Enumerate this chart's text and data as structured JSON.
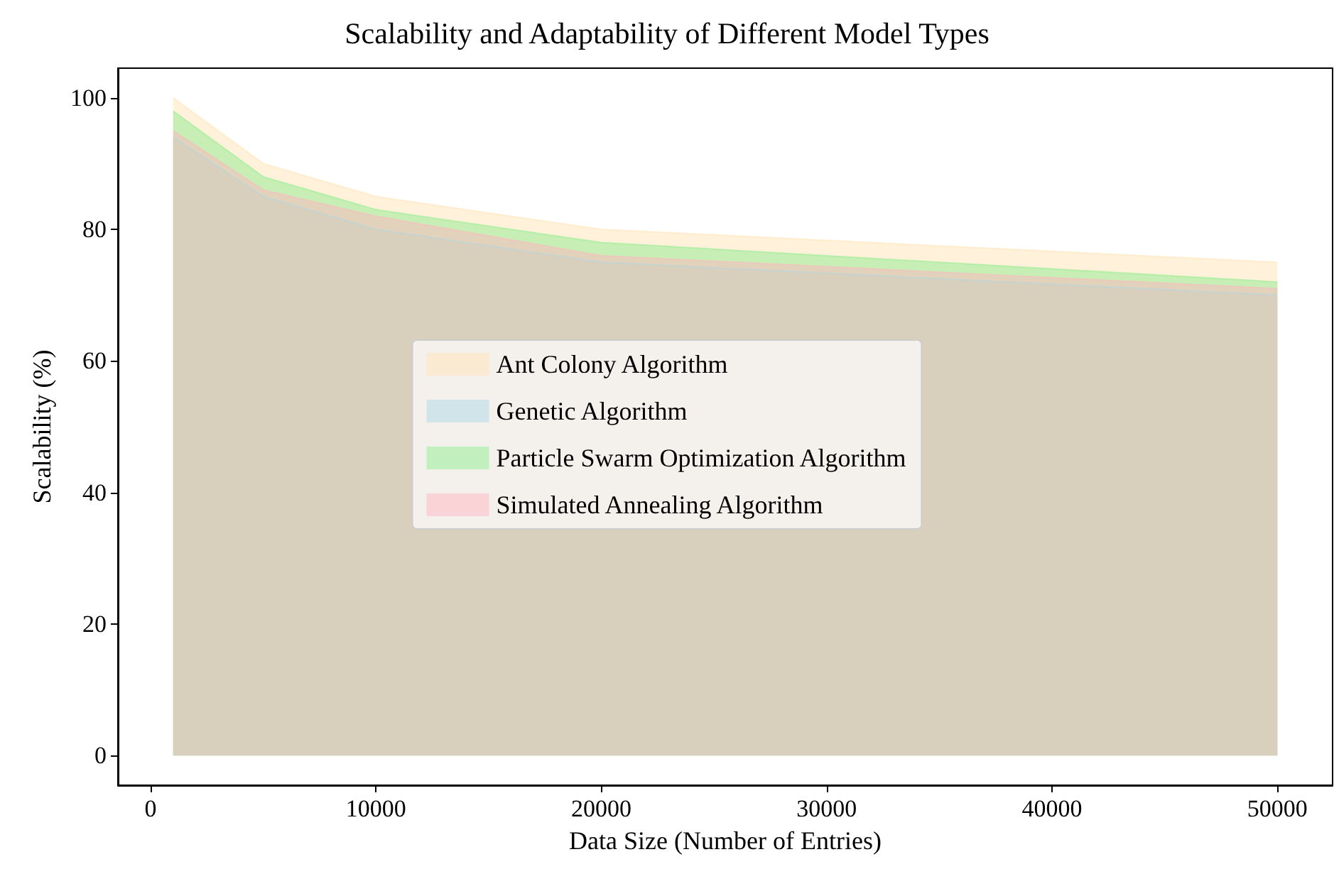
{
  "chart_data": {
    "type": "area",
    "title": "Scalability and Adaptability of Different Model Types",
    "xlabel": "Data Size (Number of Entries)",
    "ylabel": "Scalability (%)",
    "x": [
      1000,
      5000,
      10000,
      20000,
      50000
    ],
    "series": [
      {
        "name": "Ant Colony Algorithm",
        "color": "#ffe4b5",
        "values": [
          100,
          90,
          85,
          80,
          75
        ]
      },
      {
        "name": "Genetic Algorithm",
        "color": "#add8e6",
        "values": [
          94,
          85,
          80,
          75,
          70
        ]
      },
      {
        "name": "Particle Swarm Optimization Algorithm",
        "color": "#90ee90",
        "values": [
          98,
          88,
          83,
          78,
          72
        ]
      },
      {
        "name": "Simulated Annealing Algorithm",
        "color": "#ffb6c1",
        "values": [
          95,
          86,
          82,
          76,
          71
        ]
      }
    ],
    "xlim": [
      -1450,
      52450
    ],
    "xticks": [
      0,
      10000,
      20000,
      30000,
      40000,
      50000
    ],
    "ylim": [
      -4.5,
      104.5
    ],
    "yticks": [
      0,
      20,
      40,
      60,
      80,
      100
    ],
    "grid": false,
    "legend": "center"
  }
}
